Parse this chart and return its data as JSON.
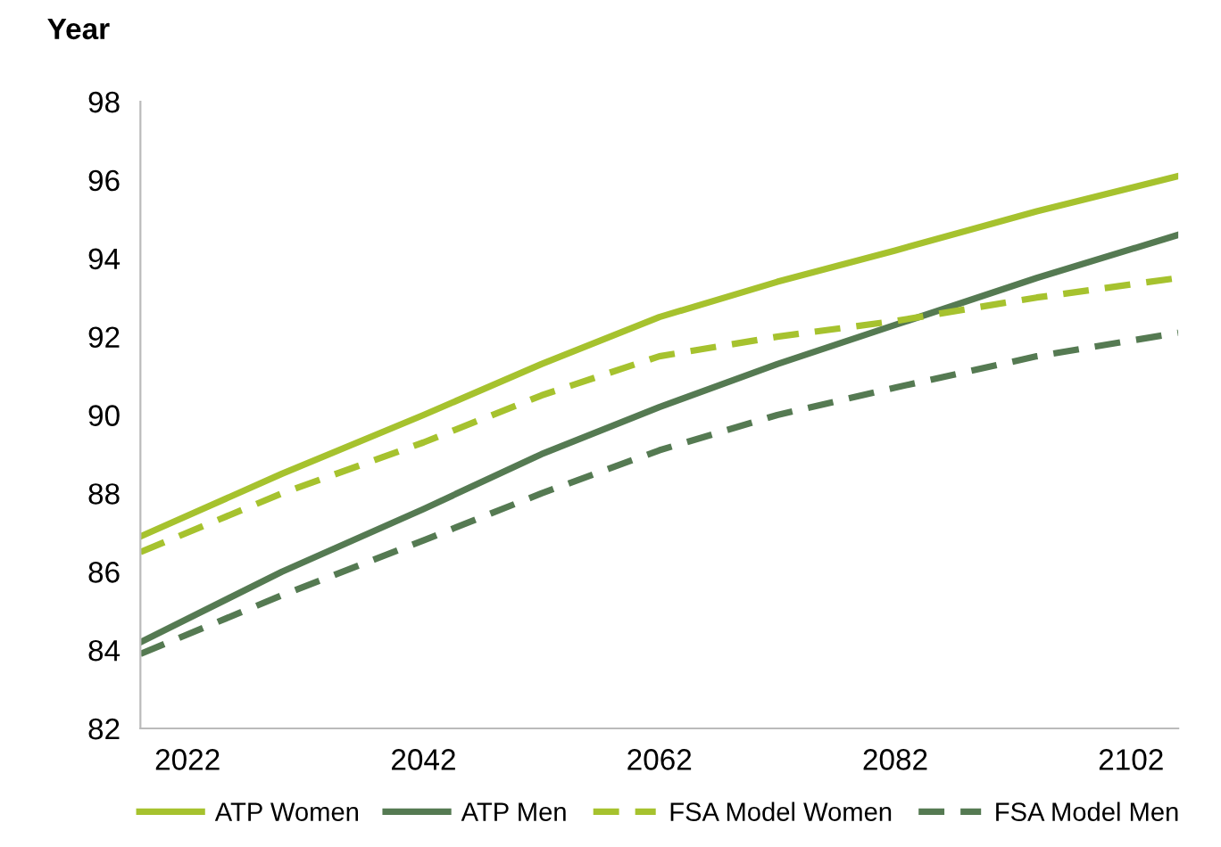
{
  "chart_data": {
    "type": "line",
    "ylabel": "Year",
    "x": [
      2018,
      2030,
      2042,
      2052,
      2062,
      2072,
      2082,
      2094,
      2106
    ],
    "xlim": [
      2018,
      2106
    ],
    "xticks": [
      2022,
      2042,
      2062,
      2082,
      2102
    ],
    "ylim": [
      82,
      98
    ],
    "yticks": [
      82,
      84,
      86,
      88,
      90,
      92,
      94,
      96,
      98
    ],
    "grid": false,
    "legend": "bottom",
    "marker": "none",
    "series": [
      {
        "name": "ATP Women",
        "color": "#a6c22e",
        "line_style": "solid",
        "values": [
          86.9,
          88.5,
          90.0,
          91.3,
          92.5,
          93.4,
          94.2,
          95.2,
          96.1
        ]
      },
      {
        "name": "ATP Men",
        "color": "#557a52",
        "line_style": "solid",
        "values": [
          84.2,
          86.0,
          87.6,
          89.0,
          90.2,
          91.3,
          92.3,
          93.5,
          94.6
        ]
      },
      {
        "name": "FSA Model Women",
        "color": "#a6c22e",
        "line_style": "dashed",
        "values": [
          86.5,
          88.0,
          89.3,
          90.5,
          91.5,
          92.0,
          92.4,
          93.0,
          93.5
        ]
      },
      {
        "name": "FSA Model Men",
        "color": "#557a52",
        "line_style": "dashed",
        "values": [
          83.9,
          85.4,
          86.8,
          88.0,
          89.1,
          90.0,
          90.7,
          91.5,
          92.1
        ]
      }
    ]
  }
}
